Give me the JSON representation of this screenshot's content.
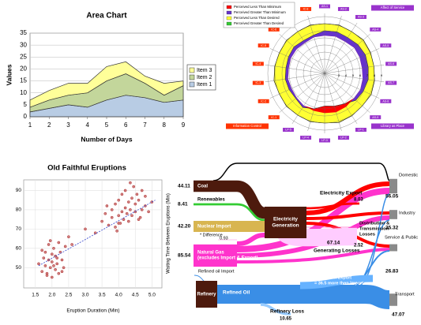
{
  "chart_data": [
    {
      "type": "area",
      "title": "Area Chart",
      "xlabel": "Number of Days",
      "ylabel": "Values",
      "x": [
        1,
        2,
        3,
        4,
        5,
        6,
        7,
        8,
        9
      ],
      "xlim": [
        1,
        9
      ],
      "xticks": [
        1,
        2,
        3,
        4,
        5,
        6,
        7,
        8,
        9
      ],
      "ylim": [
        0,
        35
      ],
      "yticks": [
        0,
        5,
        10,
        15,
        20,
        25,
        30,
        35
      ],
      "grid": true,
      "stacked": true,
      "legend": "right",
      "series": [
        {
          "name": "Item 1",
          "color": "#b8cce4",
          "values": [
            2,
            3.5,
            5,
            4,
            7,
            9,
            8,
            6,
            7
          ]
        },
        {
          "name": "Item 2",
          "color": "#c3d69b",
          "values": [
            2,
            3.5,
            4,
            6,
            8,
            9,
            6,
            3,
            6
          ]
        },
        {
          "name": "Item 3",
          "color": "#ffff99",
          "values": [
            3,
            4,
            5,
            4,
            6,
            5,
            3,
            5,
            2
          ]
        }
      ]
    },
    {
      "type": "radar",
      "rlim": [
        1,
        9
      ],
      "rticks": [
        3,
        4,
        5,
        6,
        7,
        8,
        9
      ],
      "groups": [
        {
          "label": "Affect of Service",
          "color": "#9933cc",
          "categories": [
            "AS-1",
            "AS-2",
            "AS-3",
            "AS-4",
            "AS-5",
            "AS-6",
            "AS-7",
            "AS-8",
            "AS-9"
          ]
        },
        {
          "label": "Library as Place",
          "color": "#9933cc",
          "categories": [
            "LP-1",
            "LP-2",
            "LP-3",
            "LP-4",
            "LP-5"
          ]
        },
        {
          "label": "Information Control",
          "color": "#ff3300",
          "categories": [
            "IC-1",
            "IC-2",
            "IC-3",
            "IC-4",
            "IC-5",
            "IC-6",
            "IC-7",
            "IC-8"
          ]
        }
      ],
      "desired": [
        8.0,
        8.1,
        8.0,
        8.2,
        8.1,
        8.0,
        8.1,
        8.2,
        8.0,
        8.1,
        8.2,
        8.0,
        8.1,
        8.0,
        8.1,
        8.0,
        8.2,
        8.1,
        8.0,
        8.1,
        8.0,
        8.1
      ],
      "minimum": [
        6.3,
        6.4,
        6.3,
        6.5,
        6.4,
        6.3,
        6.4,
        6.5,
        6.4,
        6.6,
        6.7,
        6.6,
        6.5,
        6.4,
        6.2,
        6.1,
        6.2,
        6.1,
        6.2,
        6.2,
        6.1,
        6.3
      ],
      "perceived": [
        7.0,
        7.1,
        7.0,
        7.2,
        7.3,
        7.2,
        7.2,
        7.0,
        6.8,
        6.1,
        5.8,
        5.6,
        6.2,
        6.7,
        6.4,
        6.5,
        6.6,
        6.5,
        6.6,
        6.7,
        6.5,
        6.6
      ],
      "legend": [
        {
          "label": "Perceived Less Than Minimum",
          "color": "#ff0000"
        },
        {
          "label": "Perceived Greater Than Minimum",
          "color": "#6633cc"
        },
        {
          "label": "Perceived Less Than Desired",
          "color": "#ffff33"
        },
        {
          "label": "Perceived Greater Than Desired",
          "color": "#33cc33"
        }
      ]
    },
    {
      "type": "scatter",
      "title": "Old Faithful Eruptions",
      "xlabel": "Eruption Duration (Min)",
      "ylabel": "Waiting Time Between Eruptions (Min)",
      "color": "#b03030",
      "grid": true,
      "xlim": [
        1.15,
        5.3
      ],
      "ylim": [
        39.5,
        95.5
      ],
      "xticks": [
        1.5,
        {
          "value": 2,
          "label": "2.0"
        },
        2.5,
        {
          "value": 3,
          "label": "3.0"
        },
        3.5,
        {
          "value": 4,
          "label": "4.0"
        },
        4.5,
        {
          "value": 5,
          "label": "5.0"
        }
      ],
      "yticks": [
        50,
        60,
        70,
        80,
        90
      ],
      "x": [
        1.6,
        1.7,
        1.75,
        1.8,
        1.8,
        1.85,
        1.9,
        1.9,
        1.95,
        2.0,
        2.0,
        2.0,
        2.05,
        2.1,
        2.1,
        2.15,
        2.2,
        2.2,
        2.25,
        2.3,
        2.35,
        2.4,
        1.7,
        1.85,
        1.95,
        2.05,
        2.15,
        2.3,
        2.5,
        2.6,
        3.0,
        3.3,
        3.5,
        3.6,
        3.7,
        3.8,
        3.8,
        3.9,
        3.9,
        4.0,
        4.0,
        4.0,
        4.1,
        4.1,
        4.15,
        4.2,
        4.2,
        4.25,
        4.3,
        4.3,
        4.35,
        4.4,
        4.4,
        4.45,
        4.5,
        4.5,
        4.55,
        4.6,
        4.6,
        4.7,
        4.7,
        4.8,
        4.8,
        4.9,
        5.0,
        3.95,
        4.05,
        4.35,
        4.65,
        3.65
      ],
      "values": [
        52,
        48,
        55,
        51,
        58,
        47,
        54,
        62,
        50,
        53,
        57,
        45,
        60,
        49,
        56,
        52,
        63,
        47,
        58,
        54,
        50,
        61,
        59,
        46,
        64,
        51,
        55,
        48,
        66,
        62,
        70,
        68,
        74,
        78,
        72,
        80,
        76,
        71,
        83,
        77,
        85,
        73,
        79,
        88,
        75,
        81,
        90,
        78,
        74,
        84,
        80,
        86,
        77,
        92,
        79,
        83,
        88,
        75,
        85,
        80,
        90,
        82,
        87,
        79,
        84,
        69,
        73,
        94,
        76,
        82
      ],
      "trendline": {
        "x": [
          1.6,
          5.1
        ],
        "y": [
          51,
          85
        ],
        "color": "#3344cc"
      }
    },
    {
      "type": "sankey",
      "inputs": [
        {
          "label": "Coal",
          "value": 44.11,
          "color": "#4d1a0d"
        },
        {
          "label": "Renewables",
          "value": 8.41,
          "color": "#33cc33"
        },
        {
          "label": "Nuclear Import",
          "value": 42.2,
          "value_label": "42.20",
          "color": "#d8b550"
        },
        {
          "label": [
            "Natural Gas",
            "(excludes Import & Export)"
          ],
          "value": 85.54,
          "color": "#ff33cc"
        }
      ],
      "difference": {
        "label": "* Difference",
        "value": 0.93
      },
      "electricity": [
        "Electricity",
        "Generation"
      ],
      "refinery": "Refinery",
      "refined_oil": "Refined Oil",
      "oil_import": "Refined oil Import",
      "oil_export": [
        "Refined oil Export",
        "= 36.5 more than Import"
      ],
      "losses": [
        {
          "label": "Electricity Export",
          "value": 8.03,
          "color": "#ff0000"
        },
        {
          "label": [
            "Distribution &",
            "Transmission",
            "Losses"
          ],
          "value": 2.52,
          "color": "#ff66cc"
        },
        {
          "label": "Generating Losses",
          "value": 67.14,
          "color": "#ffccff"
        },
        {
          "label": "Refinery Loss",
          "value": 10.65,
          "color": "#99ccff"
        }
      ],
      "outputs": [
        {
          "label": "Domestic",
          "value": 56.05
        },
        {
          "label": "Industry",
          "value": 35.32
        },
        {
          "label": "Service & Public",
          "value": 26.83
        },
        {
          "label": "Transport",
          "value": 47.07
        }
      ],
      "output_color": "#8a8a8a"
    }
  ]
}
